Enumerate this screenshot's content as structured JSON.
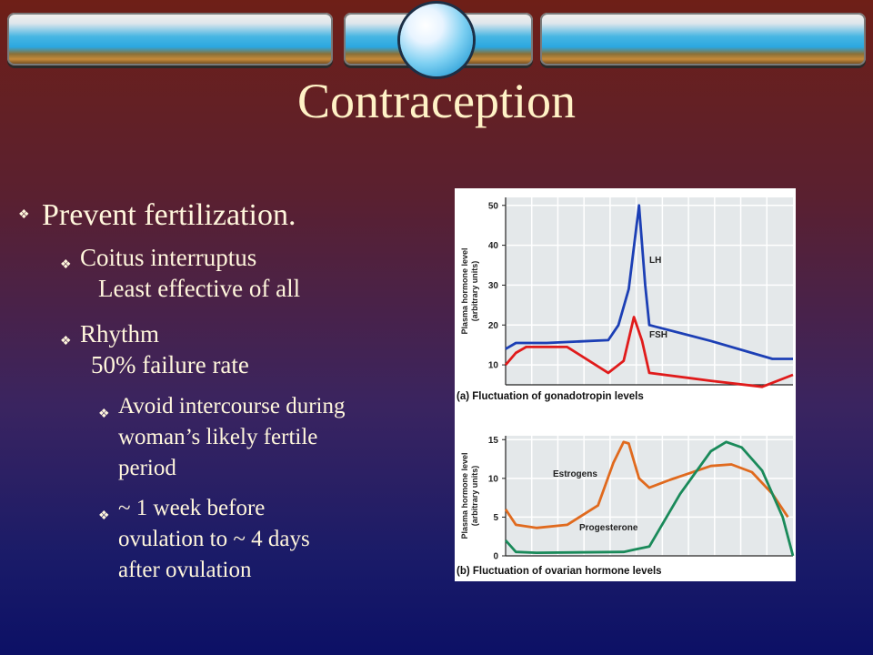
{
  "title": "Contraception",
  "bullets": {
    "l1": "Prevent fertilization.",
    "coitus": "Coitus interruptus",
    "coitus_note": "Least effective of all",
    "rhythm": "Rhythm",
    "rhythm_note": "50% failure rate",
    "avoid": [
      "Avoid intercourse during",
      "woman’s likely fertile",
      "period"
    ],
    "week": [
      "~ 1 week before",
      "ovulation to ~ 4 days",
      "after ovulation"
    ]
  },
  "chart_data": [
    {
      "type": "line",
      "title": "(a) Fluctuation of gonadotropin levels",
      "ylabel": "Plasma hormone level (arbitrary units)",
      "yticks": [
        10,
        20,
        30,
        40,
        50
      ],
      "ylim": [
        5,
        52
      ],
      "xlim": [
        0,
        28
      ],
      "series": [
        {
          "name": "LH",
          "color": "#1c3fb5",
          "points": [
            [
              0,
              14
            ],
            [
              1,
              15.5
            ],
            [
              4,
              15.5
            ],
            [
              10,
              16.2
            ],
            [
              11,
              20
            ],
            [
              12,
              29
            ],
            [
              13,
              50
            ],
            [
              13.6,
              30
            ],
            [
              14,
              20
            ],
            [
              20,
              16
            ],
            [
              26,
              11.5
            ],
            [
              28,
              11.5
            ]
          ]
        },
        {
          "name": "FSH",
          "color": "#e01b1b",
          "points": [
            [
              0,
              10
            ],
            [
              1,
              13
            ],
            [
              2,
              14.5
            ],
            [
              6,
              14.5
            ],
            [
              10,
              8
            ],
            [
              11.5,
              11
            ],
            [
              12.5,
              22
            ],
            [
              13.3,
              16
            ],
            [
              14,
              8
            ],
            [
              20,
              6
            ],
            [
              25,
              4.5
            ],
            [
              28,
              7.5
            ]
          ]
        }
      ]
    },
    {
      "type": "line",
      "title": "(b) Fluctuation of ovarian hormone levels",
      "ylabel": "Plasma hormone level (arbitrary units)",
      "yticks": [
        0,
        5,
        10,
        15
      ],
      "ylim": [
        0,
        15.5
      ],
      "xlim": [
        0,
        28
      ],
      "series": [
        {
          "name": "Estrogens",
          "color": "#e06a1e",
          "points": [
            [
              0,
              6
            ],
            [
              1,
              4
            ],
            [
              3,
              3.6
            ],
            [
              6,
              4
            ],
            [
              9,
              6.5
            ],
            [
              10.5,
              12
            ],
            [
              11.5,
              14.7
            ],
            [
              12,
              14.5
            ],
            [
              13,
              10
            ],
            [
              14,
              8.8
            ],
            [
              16,
              9.8
            ],
            [
              20,
              11.6
            ],
            [
              22,
              11.8
            ],
            [
              24,
              10.8
            ],
            [
              26,
              8
            ],
            [
              27.5,
              5
            ]
          ]
        },
        {
          "name": "Progesterone",
          "color": "#1a8a5a",
          "points": [
            [
              0,
              2
            ],
            [
              1,
              0.5
            ],
            [
              3,
              0.4
            ],
            [
              11.5,
              0.5
            ],
            [
              12.5,
              0.8
            ],
            [
              14,
              1.2
            ],
            [
              17,
              8
            ],
            [
              20,
              13.5
            ],
            [
              21.5,
              14.7
            ],
            [
              23,
              14
            ],
            [
              25,
              11
            ],
            [
              27,
              5
            ],
            [
              28,
              0
            ]
          ]
        }
      ]
    }
  ]
}
